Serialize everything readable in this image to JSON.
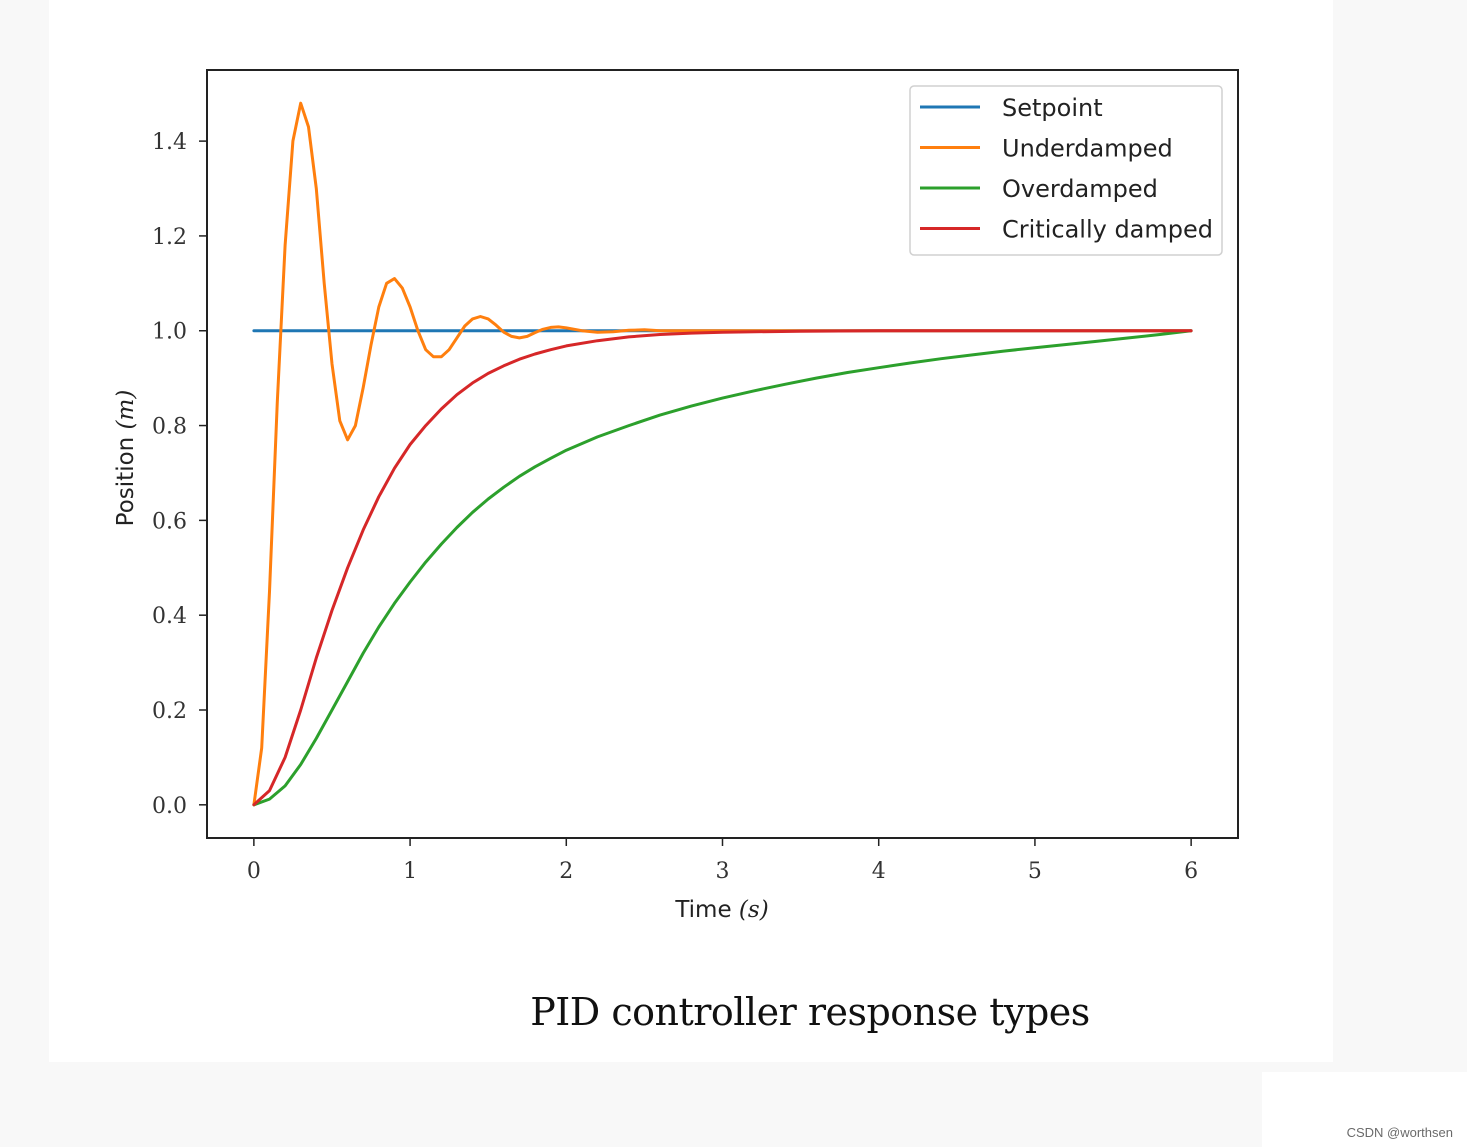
{
  "chart_data": {
    "type": "line",
    "title": "",
    "xlabel": "Time ",
    "xlabel_var": "(s)",
    "ylabel": "Position ",
    "ylabel_var": "(m)",
    "xlim": [
      -0.3,
      6.3
    ],
    "ylim": [
      -0.07,
      1.55
    ],
    "x_ticks": [
      0,
      1,
      2,
      3,
      4,
      5,
      6
    ],
    "x_tick_labels": [
      "0",
      "1",
      "2",
      "3",
      "4",
      "5",
      "6"
    ],
    "y_ticks": [
      0.0,
      0.2,
      0.4,
      0.6,
      0.8,
      1.0,
      1.2,
      1.4
    ],
    "y_tick_labels": [
      "0.0",
      "0.2",
      "0.4",
      "0.6",
      "0.8",
      "1.0",
      "1.2",
      "1.4"
    ],
    "grid": false,
    "legend_position": "top-right",
    "series": [
      {
        "name": "Setpoint",
        "color": "#1f77b4",
        "points": [
          [
            0,
            1.0
          ],
          [
            6,
            1.0
          ]
        ]
      },
      {
        "name": "Underdamped",
        "color": "#ff7f0e",
        "points": [
          [
            0,
            0.0
          ],
          [
            0.05,
            0.12
          ],
          [
            0.1,
            0.45
          ],
          [
            0.15,
            0.85
          ],
          [
            0.2,
            1.18
          ],
          [
            0.25,
            1.4
          ],
          [
            0.3,
            1.48
          ],
          [
            0.35,
            1.43
          ],
          [
            0.4,
            1.3
          ],
          [
            0.45,
            1.1
          ],
          [
            0.5,
            0.93
          ],
          [
            0.55,
            0.81
          ],
          [
            0.6,
            0.77
          ],
          [
            0.65,
            0.8
          ],
          [
            0.7,
            0.88
          ],
          [
            0.75,
            0.97
          ],
          [
            0.8,
            1.05
          ],
          [
            0.85,
            1.1
          ],
          [
            0.9,
            1.11
          ],
          [
            0.95,
            1.09
          ],
          [
            1.0,
            1.05
          ],
          [
            1.05,
            1.0
          ],
          [
            1.1,
            0.96
          ],
          [
            1.15,
            0.945
          ],
          [
            1.2,
            0.945
          ],
          [
            1.25,
            0.96
          ],
          [
            1.3,
            0.985
          ],
          [
            1.35,
            1.01
          ],
          [
            1.4,
            1.025
          ],
          [
            1.45,
            1.03
          ],
          [
            1.5,
            1.025
          ],
          [
            1.55,
            1.012
          ],
          [
            1.6,
            0.997
          ],
          [
            1.65,
            0.988
          ],
          [
            1.7,
            0.985
          ],
          [
            1.75,
            0.988
          ],
          [
            1.8,
            0.996
          ],
          [
            1.85,
            1.003
          ],
          [
            1.9,
            1.007
          ],
          [
            1.95,
            1.008
          ],
          [
            2.0,
            1.006
          ],
          [
            2.1,
            1.0
          ],
          [
            2.2,
            0.997
          ],
          [
            2.3,
            0.998
          ],
          [
            2.4,
            1.001
          ],
          [
            2.5,
            1.002
          ],
          [
            2.6,
            1.0
          ],
          [
            2.8,
            1.0
          ],
          [
            3.0,
            1.0
          ],
          [
            4.0,
            1.0
          ],
          [
            5.0,
            1.0
          ],
          [
            6.0,
            1.0
          ]
        ]
      },
      {
        "name": "Overdamped",
        "color": "#2ca02c",
        "points": [
          [
            0,
            0.0
          ],
          [
            0.1,
            0.012
          ],
          [
            0.2,
            0.04
          ],
          [
            0.3,
            0.085
          ],
          [
            0.4,
            0.14
          ],
          [
            0.5,
            0.2
          ],
          [
            0.6,
            0.26
          ],
          [
            0.7,
            0.32
          ],
          [
            0.8,
            0.375
          ],
          [
            0.9,
            0.425
          ],
          [
            1.0,
            0.47
          ],
          [
            1.1,
            0.512
          ],
          [
            1.2,
            0.55
          ],
          [
            1.3,
            0.585
          ],
          [
            1.4,
            0.617
          ],
          [
            1.5,
            0.645
          ],
          [
            1.6,
            0.67
          ],
          [
            1.7,
            0.693
          ],
          [
            1.8,
            0.713
          ],
          [
            1.9,
            0.731
          ],
          [
            2.0,
            0.748
          ],
          [
            2.2,
            0.776
          ],
          [
            2.4,
            0.8
          ],
          [
            2.6,
            0.822
          ],
          [
            2.8,
            0.841
          ],
          [
            3.0,
            0.858
          ],
          [
            3.2,
            0.873
          ],
          [
            3.4,
            0.887
          ],
          [
            3.6,
            0.9
          ],
          [
            3.8,
            0.912
          ],
          [
            4.0,
            0.922
          ],
          [
            4.2,
            0.932
          ],
          [
            4.4,
            0.941
          ],
          [
            4.6,
            0.949
          ],
          [
            4.8,
            0.957
          ],
          [
            5.0,
            0.964
          ],
          [
            5.2,
            0.971
          ],
          [
            5.4,
            0.978
          ],
          [
            5.6,
            0.985
          ],
          [
            5.8,
            0.992
          ],
          [
            6.0,
            1.0
          ]
        ]
      },
      {
        "name": "Critically damped",
        "color": "#d62728",
        "points": [
          [
            0,
            0.0
          ],
          [
            0.1,
            0.03
          ],
          [
            0.2,
            0.1
          ],
          [
            0.3,
            0.2
          ],
          [
            0.4,
            0.31
          ],
          [
            0.5,
            0.41
          ],
          [
            0.6,
            0.5
          ],
          [
            0.7,
            0.58
          ],
          [
            0.8,
            0.65
          ],
          [
            0.9,
            0.71
          ],
          [
            1.0,
            0.76
          ],
          [
            1.1,
            0.8
          ],
          [
            1.2,
            0.835
          ],
          [
            1.3,
            0.865
          ],
          [
            1.4,
            0.89
          ],
          [
            1.5,
            0.91
          ],
          [
            1.6,
            0.926
          ],
          [
            1.7,
            0.94
          ],
          [
            1.8,
            0.951
          ],
          [
            1.9,
            0.96
          ],
          [
            2.0,
            0.968
          ],
          [
            2.2,
            0.979
          ],
          [
            2.4,
            0.987
          ],
          [
            2.6,
            0.992
          ],
          [
            2.8,
            0.995
          ],
          [
            3.0,
            0.997
          ],
          [
            3.5,
            0.999
          ],
          [
            4.0,
            1.0
          ],
          [
            5.0,
            1.0
          ],
          [
            6.0,
            1.0
          ]
        ]
      }
    ]
  },
  "caption": "PID controller response types",
  "watermark": "CSDN @worthsen"
}
